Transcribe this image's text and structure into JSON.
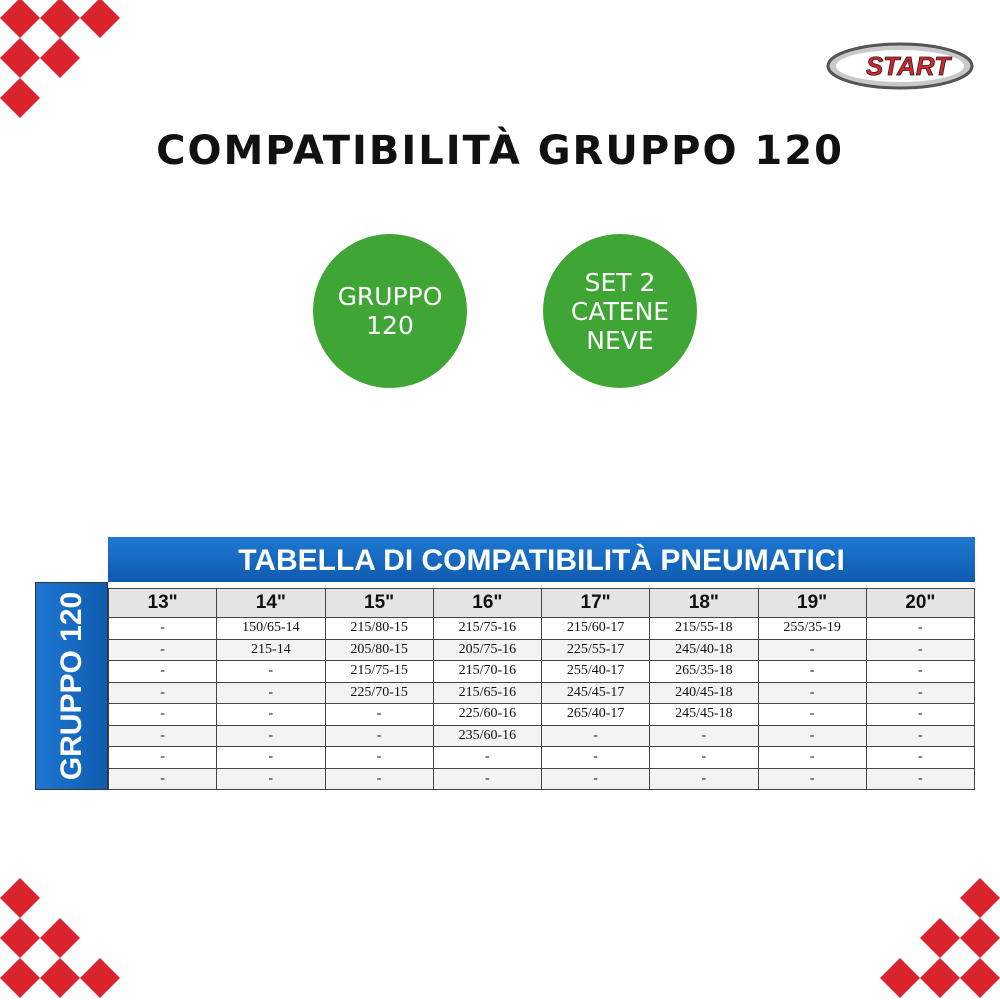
{
  "logo": "START",
  "title": "COMPATIBILITÀ GRUPPO 120",
  "badges": [
    {
      "lines": [
        "GRUPPO",
        "120"
      ]
    },
    {
      "lines": [
        "SET 2",
        "CATENE",
        "NEVE"
      ]
    }
  ],
  "table": {
    "title": "TABELLA DI COMPATIBILITÀ PNEUMATICI",
    "side_label": "GRUPPO 120",
    "headers": [
      "13\"",
      "14\"",
      "15\"",
      "16\"",
      "17\"",
      "18\"",
      "19\"",
      "20\""
    ],
    "rows": [
      [
        "-",
        "150/65-14",
        "215/80-15",
        "215/75-16",
        "215/60-17",
        "215/55-18",
        "255/35-19",
        "-"
      ],
      [
        "-",
        "215-14",
        "205/80-15",
        "205/75-16",
        "225/55-17",
        "245/40-18",
        "-",
        "-"
      ],
      [
        "-",
        "-",
        "215/75-15",
        "215/70-16",
        "255/40-17",
        "265/35-18",
        "-",
        "-"
      ],
      [
        "-",
        "-",
        "225/70-15",
        "215/65-16",
        "245/45-17",
        "240/45-18",
        "-",
        "-"
      ],
      [
        "-",
        "-",
        "-",
        "225/60-16",
        "265/40-17",
        "245/45-18",
        "-",
        "-"
      ],
      [
        "-",
        "-",
        "-",
        "235/60-16",
        "-",
        "-",
        "-",
        "-"
      ],
      [
        "-",
        "-",
        "-",
        "-",
        "-",
        "-",
        "-",
        "-"
      ],
      [
        "-",
        "-",
        "-",
        "-",
        "-",
        "-",
        "-",
        "-"
      ]
    ]
  }
}
